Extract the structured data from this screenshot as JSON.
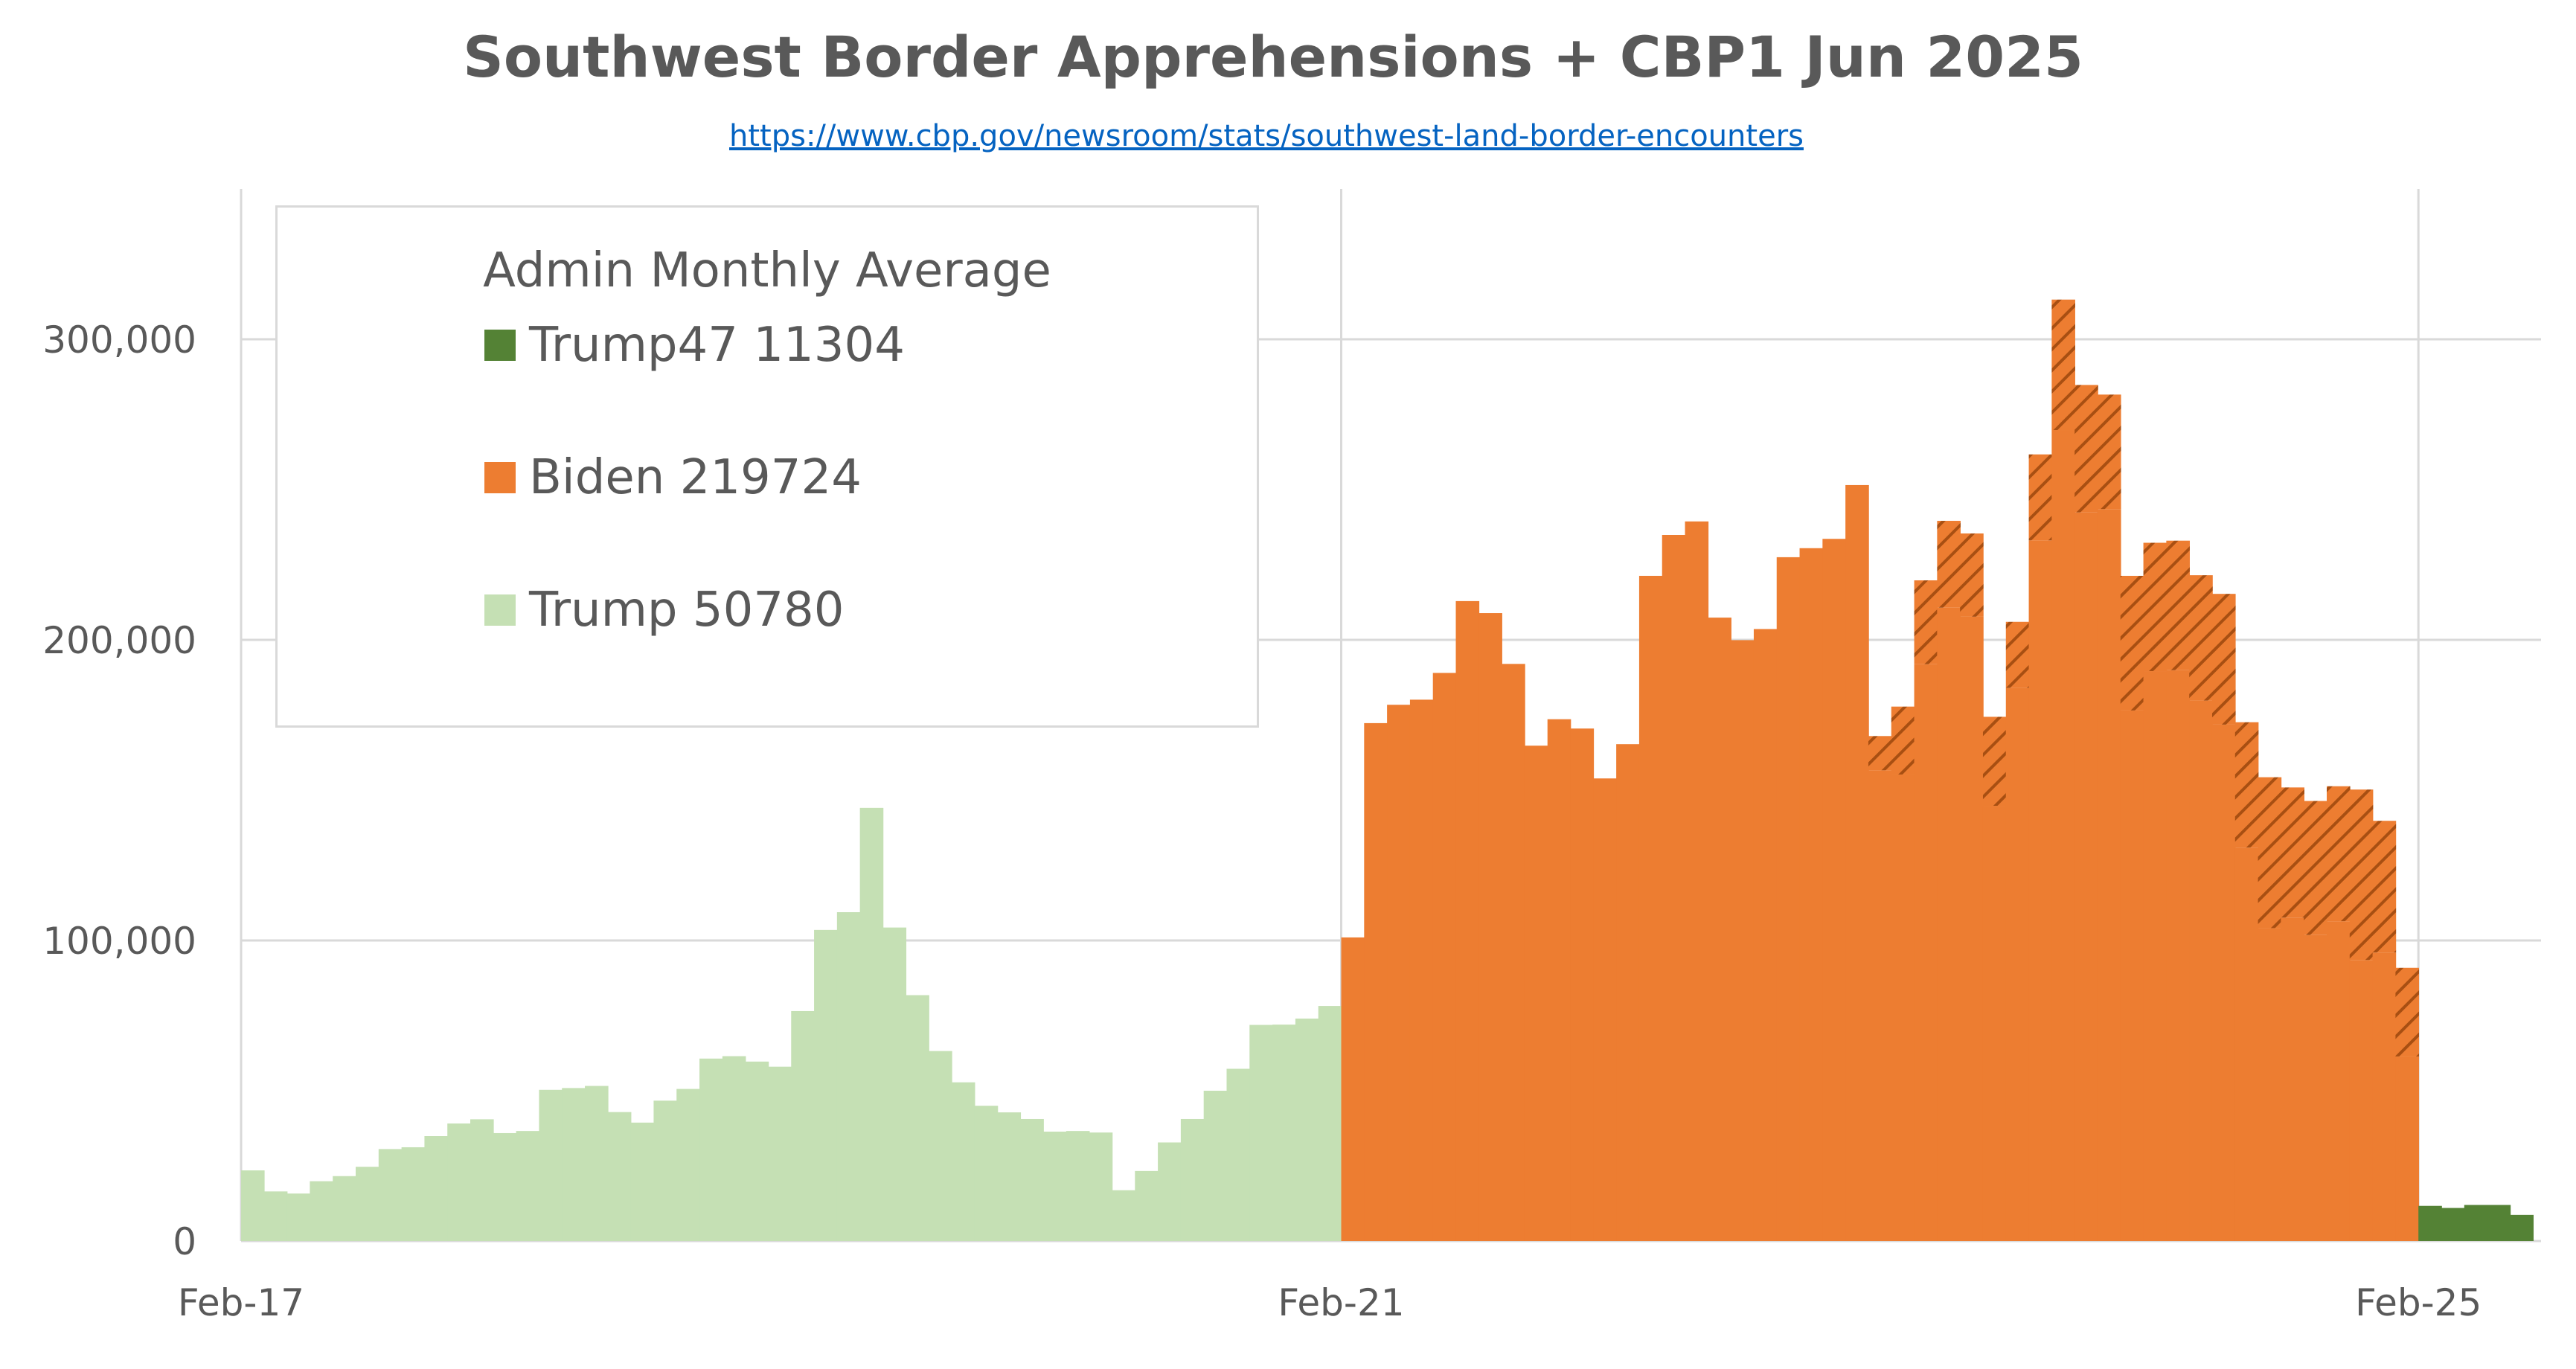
{
  "title": "Southwest Border Apprehensions + CBP1 Jun 2025",
  "source_url": "https://www.cbp.gov/newsroom/stats/southwest-land-border-encounters",
  "legend": {
    "title": "Admin Monthly Average",
    "items": [
      {
        "label": "Trump47 11304",
        "color": "#548235"
      },
      {
        "label": "Biden 219724",
        "color": "#ed7d31"
      },
      {
        "label": "Trump 50780",
        "color": "#c5e0b4"
      }
    ]
  },
  "chart_data": {
    "type": "bar",
    "title": "Southwest Border Apprehensions + CBP1 Jun 2025",
    "ylim": [
      0,
      350000
    ],
    "y_ticks": [
      "0",
      "100,000",
      "200,000",
      "300,000"
    ],
    "x_ticks": [
      "Feb-17",
      "Feb-21",
      "Feb-25"
    ],
    "grid": true,
    "legend_position": "top-left",
    "series": [
      {
        "name": "Trump",
        "color": "#c5e0b4",
        "start_month": "Feb-17",
        "values": [
          23500,
          16500,
          15800,
          19900,
          21600,
          24700,
          30600,
          31200,
          34900,
          39100,
          40500,
          35900,
          36600,
          50300,
          50900,
          51600,
          42900,
          39400,
          46700,
          50600,
          60700,
          61500,
          59700,
          58000,
          76500,
          103500,
          109400,
          144100,
          104300,
          81800,
          63200,
          52800,
          45000,
          42800,
          40600,
          36400,
          36600,
          36100,
          16900,
          23300,
          32800,
          40600,
          50000,
          57300,
          71900,
          72000,
          74000,
          78200
        ]
      },
      {
        "name": "Biden",
        "color": "#ed7d31",
        "start_month": "Feb-21",
        "values": [
          101000,
          172300,
          178400,
          180100,
          189000,
          212900,
          208900,
          192000,
          164800,
          173600,
          170500,
          153900,
          165300,
          221300,
          234900,
          239400,
          207400,
          199900,
          203600,
          227500,
          230500,
          233600,
          251500,
          156600,
          155200,
          191900,
          210700,
          207700,
          144800,
          184000,
          233100,
          269800,
          242400,
          243500,
          176500,
          189600,
          189900,
          179800,
          171800,
          130900,
          104100,
          107600,
          101800,
          106400,
          93500,
          96000,
          61400
        ],
        "cbp1": [
          0,
          0,
          0,
          0,
          0,
          0,
          0,
          0,
          0,
          0,
          0,
          0,
          0,
          0,
          0,
          0,
          0,
          0,
          0,
          0,
          0,
          0,
          0,
          11400,
          22600,
          27900,
          28900,
          27700,
          29600,
          22000,
          28600,
          43400,
          42400,
          38100,
          44800,
          42700,
          43100,
          41700,
          43500,
          41700,
          50200,
          43300,
          44600,
          44900,
          56700,
          43800,
          29500
        ]
      },
      {
        "name": "Trump47",
        "color": "#548235",
        "start_month": "Feb-25",
        "values": [
          11700,
          11000,
          12000,
          12000,
          8700
        ]
      }
    ]
  }
}
